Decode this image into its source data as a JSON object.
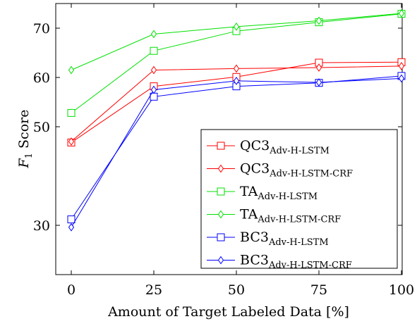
{
  "chart_data": {
    "type": "line",
    "xlabel": "Amount of Target Labeled Data [%]",
    "ylabel": "F",
    "ylabel_sub": "1",
    "ylabel_rest": " Score",
    "xlim": [
      0,
      100
    ],
    "ylim": [
      20,
      75
    ],
    "x_ticks": [
      0,
      25,
      50,
      75,
      100
    ],
    "y_ticks": [
      30,
      50,
      60,
      70
    ],
    "grid": false,
    "legend_position": "bottom-right",
    "x": [
      0,
      25,
      50,
      75,
      100
    ],
    "series": [
      {
        "name": "QC3",
        "name_sub": "Adv-H-LSTM",
        "color": "#ff0000",
        "marker": "square",
        "values": [
          46.8,
          58.2,
          60.1,
          63.0,
          63.1
        ]
      },
      {
        "name": "QC3",
        "name_sub": "Adv-H-LSTM-CRF",
        "color": "#ff0000",
        "marker": "diamond",
        "values": [
          47.0,
          61.5,
          61.8,
          62.0,
          62.3
        ]
      },
      {
        "name": "TA",
        "name_sub": "Adv-H-LSTM",
        "color": "#00e000",
        "marker": "square",
        "values": [
          52.8,
          65.4,
          69.4,
          71.2,
          72.9
        ]
      },
      {
        "name": "TA",
        "name_sub": "Adv-H-LSTM-CRF",
        "color": "#00e000",
        "marker": "diamond",
        "values": [
          61.5,
          68.8,
          70.3,
          71.5,
          73.0
        ]
      },
      {
        "name": "BC3",
        "name_sub": "Adv-H-LSTM",
        "color": "#0000ff",
        "marker": "square",
        "values": [
          31.2,
          56.1,
          58.2,
          58.9,
          60.3
        ]
      },
      {
        "name": "BC3",
        "name_sub": "Adv-H-LSTM-CRF",
        "color": "#0000ff",
        "marker": "diamond",
        "values": [
          29.6,
          57.5,
          59.3,
          59.0,
          59.8
        ]
      }
    ]
  }
}
